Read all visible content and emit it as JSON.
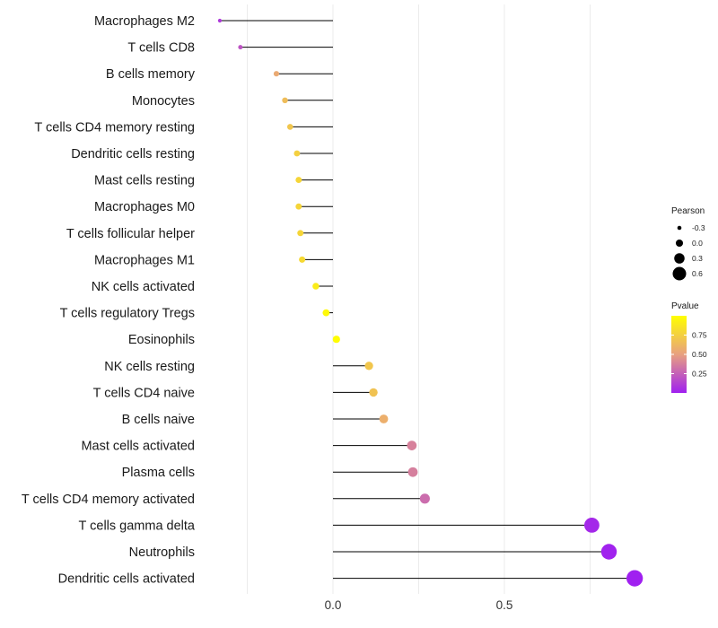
{
  "chart_data": {
    "type": "lollipop",
    "title": "",
    "xlabel": "",
    "ylabel": "",
    "xlim": [
      -0.35,
      0.9
    ],
    "xticks": [
      0.0,
      0.5
    ],
    "xtick_labels": [
      "0.0",
      "0.5"
    ],
    "grid_x": [
      -0.25,
      0.0,
      0.25,
      0.5,
      0.75
    ],
    "categories": [
      "Macrophages M2",
      "T cells CD8",
      "B cells memory",
      "Monocytes",
      "T cells CD4 memory resting",
      "Dendritic cells resting",
      "Mast cells resting",
      "Macrophages M0",
      "T cells follicular helper",
      "Macrophages M1",
      "NK cells activated",
      "T cells regulatory  Tregs",
      "Eosinophils",
      "NK cells resting",
      "T cells CD4 naive",
      "B cells naive",
      "Mast cells activated",
      "Plasma cells",
      "T cells CD4 memory activated",
      "T cells gamma delta",
      "Neutrophils",
      "Dendritic cells activated"
    ],
    "pearson": [
      -0.33,
      -0.27,
      -0.165,
      -0.14,
      -0.125,
      -0.105,
      -0.1,
      -0.1,
      -0.095,
      -0.09,
      -0.05,
      -0.02,
      0.01,
      0.105,
      0.118,
      0.148,
      0.23,
      0.233,
      0.268,
      0.755,
      0.805,
      0.88
    ],
    "pvalue": [
      0.1,
      0.2,
      0.55,
      0.65,
      0.7,
      0.75,
      0.78,
      0.78,
      0.78,
      0.8,
      0.9,
      0.97,
      0.99,
      0.7,
      0.68,
      0.58,
      0.38,
      0.37,
      0.3,
      0.03,
      0.01,
      0.0
    ],
    "size_legend": {
      "title": "Pearson",
      "entries": [
        {
          "label": "-0.3",
          "value": -0.3
        },
        {
          "label": "0.0",
          "value": 0.0
        },
        {
          "label": "0.3",
          "value": 0.3
        },
        {
          "label": "0.6",
          "value": 0.6
        }
      ]
    },
    "color_legend": {
      "title": "Pvalue",
      "ticks": [
        {
          "label": "0.75",
          "value": 0.75
        },
        {
          "label": "0.50",
          "value": 0.5
        },
        {
          "label": "0.25",
          "value": 0.25
        }
      ],
      "range": [
        0.0,
        1.0
      ],
      "low_color": "#a020f0",
      "mid_color": "#e8a080",
      "high_color": "#ffff00"
    },
    "stem_color": "#000000",
    "grid_color": "#ebebeb"
  }
}
